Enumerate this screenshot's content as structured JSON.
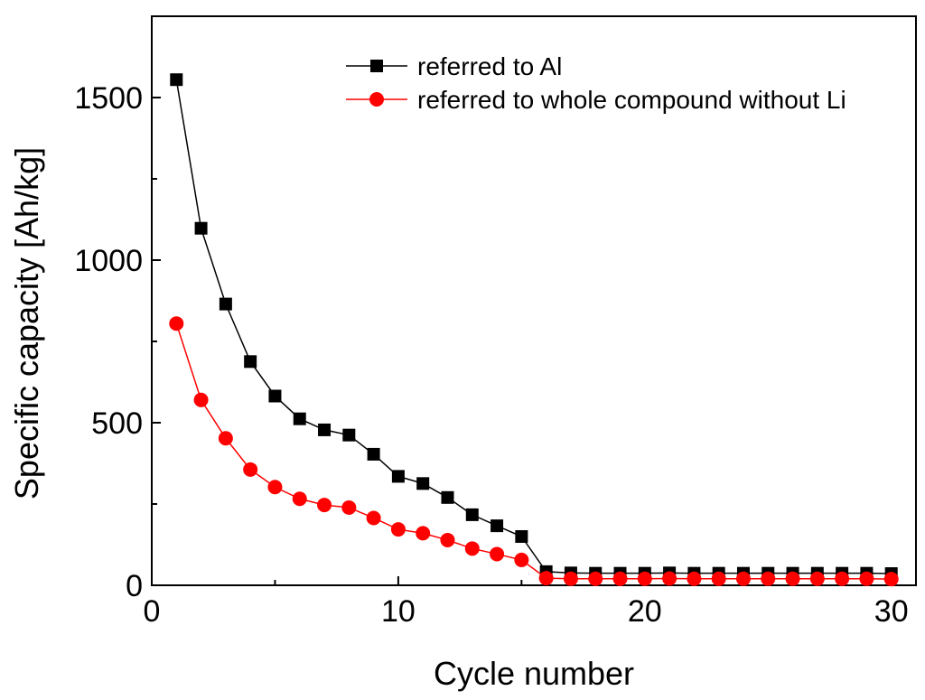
{
  "chart_data": {
    "type": "line",
    "title": "",
    "xlabel": "Cycle number",
    "ylabel": "Specific capacity [Ah/kg]",
    "xlim": [
      0,
      31
    ],
    "ylim": [
      0,
      1750
    ],
    "xticks": [
      0,
      10,
      20,
      30
    ],
    "yticks": [
      0,
      500,
      1000,
      1500
    ],
    "x": [
      1,
      2,
      3,
      4,
      5,
      6,
      7,
      8,
      9,
      10,
      11,
      12,
      13,
      14,
      15,
      16,
      17,
      18,
      19,
      20,
      21,
      22,
      23,
      24,
      25,
      26,
      27,
      28,
      29,
      30
    ],
    "legend_position": "top-right",
    "series": [
      {
        "name": "referred to Al",
        "color": "#000000",
        "marker": "square",
        "values": [
          1555,
          1098,
          865,
          688,
          582,
          512,
          478,
          462,
          403,
          335,
          313,
          270,
          217,
          183,
          150,
          42,
          38,
          37,
          37,
          37,
          38,
          37,
          37,
          37,
          37,
          37,
          37,
          37,
          37,
          36
        ]
      },
      {
        "name": "referred to whole compound without Li",
        "color": "#ff0000",
        "marker": "circle",
        "values": [
          805,
          570,
          452,
          356,
          302,
          266,
          247,
          239,
          207,
          172,
          160,
          139,
          113,
          96,
          78,
          22,
          20,
          20,
          20,
          20,
          21,
          20,
          20,
          20,
          20,
          20,
          20,
          20,
          20,
          19
        ]
      }
    ]
  }
}
